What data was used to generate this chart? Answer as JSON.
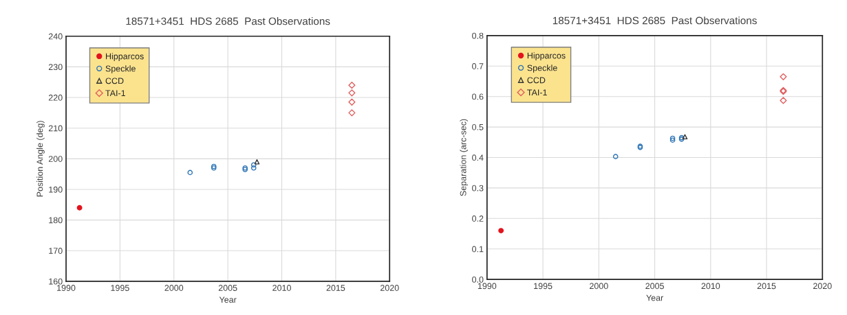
{
  "chart_data": [
    {
      "type": "scatter",
      "title": "18571+3451  HDS 2685  Past Observations",
      "xlabel": "Year",
      "ylabel": "Position Angle (deg)",
      "xlim": [
        1990,
        2020
      ],
      "xticks": [
        1990,
        1995,
        2000,
        2005,
        2010,
        2015,
        2020
      ],
      "ylim": [
        160,
        240
      ],
      "yticks": [
        160,
        170,
        180,
        190,
        200,
        210,
        220,
        230,
        240
      ],
      "grid": true,
      "legend": "top left",
      "series": [
        {
          "name": "Hipparcos",
          "color": "#e3141e",
          "marker": "circle",
          "x": [
            1991.25
          ],
          "values": [
            184
          ]
        },
        {
          "name": "Speckle",
          "color": "#2e75b6",
          "marker": "circle",
          "x": [
            2001.5,
            2003.7,
            2003.7,
            2006.6,
            2006.6,
            2007.4,
            2007.4
          ],
          "values": [
            195.5,
            197,
            197.5,
            196.5,
            197,
            197,
            198
          ]
        },
        {
          "name": "CCD",
          "color": "#333333",
          "marker": "triangle",
          "x": [
            2007.7
          ],
          "values": [
            199
          ]
        },
        {
          "name": "TAI-1",
          "color": "#e06060",
          "marker": "diamond",
          "x": [
            2016.5,
            2016.5,
            2016.5,
            2016.5
          ],
          "values": [
            224,
            221.5,
            218.5,
            215
          ]
        }
      ]
    },
    {
      "type": "scatter",
      "title": "18571+3451  HDS 2685  Past Observations",
      "xlabel": "Year",
      "ylabel": "Separation (arc-sec)",
      "xlim": [
        1990,
        2020
      ],
      "xticks": [
        1990,
        1995,
        2000,
        2005,
        2010,
        2015,
        2020
      ],
      "ylim": [
        0,
        0.8
      ],
      "yticks": [
        {
          "value": 0,
          "label": "0.0"
        },
        0.1,
        0.2,
        0.3,
        0.4,
        0.5,
        0.6,
        0.7,
        0.8
      ],
      "grid": true,
      "legend": "top left",
      "series": [
        {
          "name": "Hipparcos",
          "color": "#e3141e",
          "marker": "circle",
          "x": [
            1991.25
          ],
          "values": [
            0.16
          ]
        },
        {
          "name": "Speckle",
          "color": "#2e75b6",
          "marker": "circle",
          "x": [
            2001.5,
            2003.7,
            2003.7,
            2006.6,
            2006.6,
            2007.4,
            2007.4
          ],
          "values": [
            0.403,
            0.433,
            0.437,
            0.457,
            0.463,
            0.46,
            0.465
          ]
        },
        {
          "name": "CCD",
          "color": "#333333",
          "marker": "triangle",
          "x": [
            2007.7
          ],
          "values": [
            0.468
          ]
        },
        {
          "name": "TAI-1",
          "color": "#e06060",
          "marker": "diamond",
          "x": [
            2016.5,
            2016.5,
            2016.5,
            2016.5
          ],
          "values": [
            0.665,
            0.62,
            0.617,
            0.587
          ]
        }
      ]
    }
  ]
}
